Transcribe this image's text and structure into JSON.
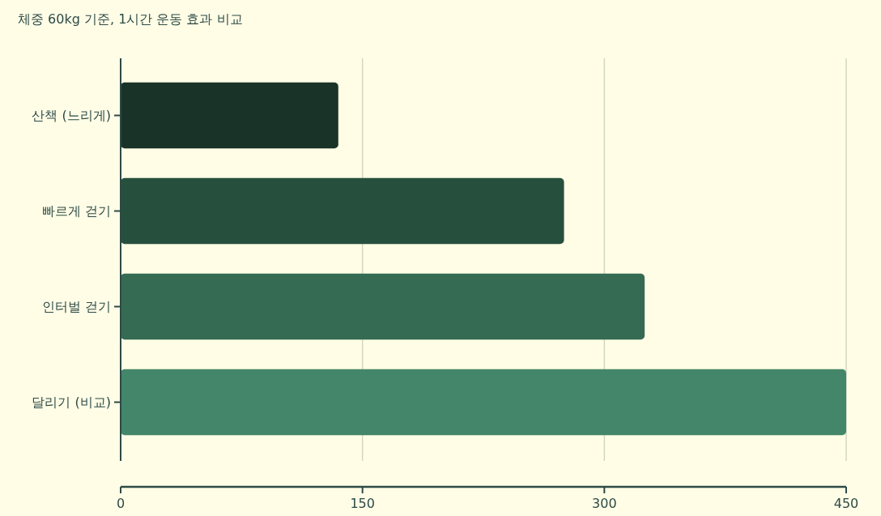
{
  "chart_data": {
    "type": "bar",
    "orientation": "horizontal",
    "title": "체중 60kg 기준, 1시간 운동 효과 비교",
    "categories": [
      "산책 (느리게)",
      "빠르게 걷기",
      "인터벌 걷기",
      "달리기 (비교)"
    ],
    "values": [
      135,
      275,
      325,
      450
    ],
    "colors": [
      "#1a3328",
      "#274f3d",
      "#366b53",
      "#438669"
    ],
    "xlim": [
      0,
      450
    ],
    "xticks": [
      0,
      150,
      300,
      450
    ],
    "grid": "x"
  }
}
